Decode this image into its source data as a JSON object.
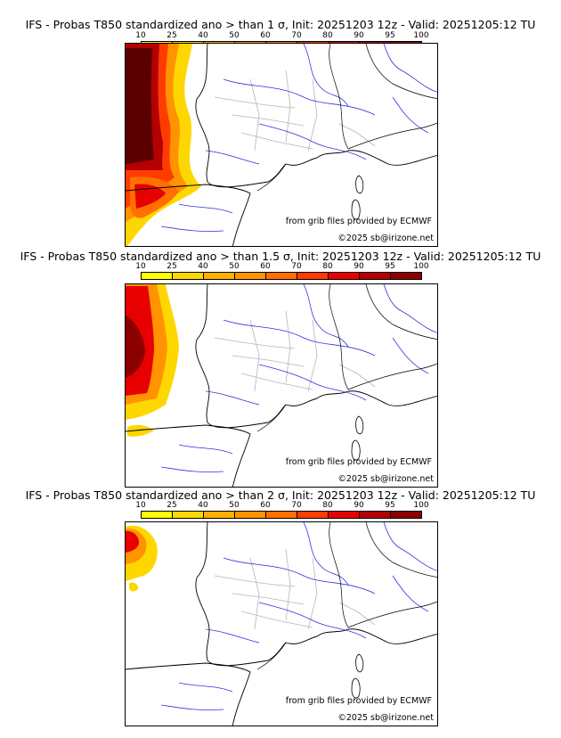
{
  "scale": {
    "labels": [
      "10",
      "25",
      "40",
      "50",
      "60",
      "70",
      "80",
      "90",
      "95",
      "100"
    ],
    "colors": [
      "#ffff00",
      "#ffd700",
      "#ffb000",
      "#ff9400",
      "#ff7000",
      "#ff3c00",
      "#e60000",
      "#b40000",
      "#8c0000",
      "#5a0000"
    ]
  },
  "panels": [
    {
      "title": "IFS - Probas T850  standardized ano > than 1 σ, Init: 20251203 12z - Valid: 20251205:12 TU",
      "credit_source": "from grib files provided by ECMWF",
      "credit_copy": "©2025 sb@irizone.net"
    },
    {
      "title": "IFS - Probas T850  standardized ano > than 1.5 σ, Init: 20251203 12z - Valid: 20251205:12 TU",
      "credit_source": "from grib files provided by ECMWF",
      "credit_copy": "©2025 sb@irizone.net"
    },
    {
      "title": "IFS - Probas T850  standardized ano > than 2 σ, Init: 20251203 12z - Valid: 20251205:12 TU",
      "credit_source": "from grib files provided by ECMWF",
      "credit_copy": "©2025 sb@irizone.net"
    }
  ]
}
